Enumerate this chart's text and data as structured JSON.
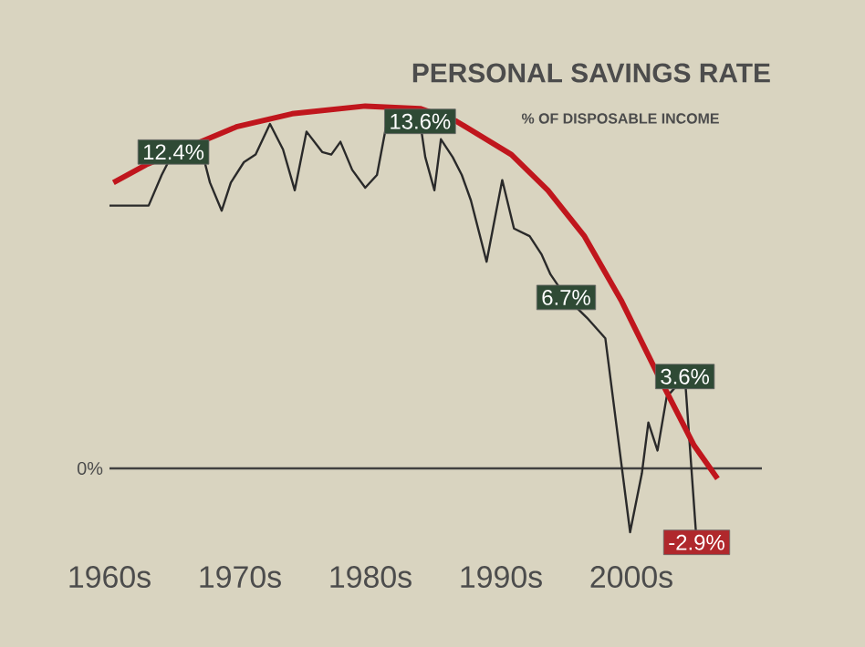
{
  "chart_data": {
    "type": "line",
    "title": "PERSONAL SAVINGS RATE",
    "subtitle": "% OF DISPOSABLE INCOME",
    "xlim": [
      1960,
      2010
    ],
    "xticks": [
      {
        "value": 1960,
        "label": "1960s"
      },
      {
        "value": 1970,
        "label": "1970s"
      },
      {
        "value": 1980,
        "label": "1980s"
      },
      {
        "value": 1990,
        "label": "1990s"
      },
      {
        "value": 2000,
        "label": "2000s"
      }
    ],
    "ref_lines": [
      {
        "axis": "y",
        "value": 0,
        "label": "0%"
      }
    ],
    "series": [
      {
        "color": "#2a2a2a",
        "x": [
          1960.0,
          1963.0,
          1964.0,
          1964.9,
          1967.0,
          1967.7,
          1968.6,
          1969.3,
          1970.3,
          1971.2,
          1972.3,
          1973.3,
          1974.2,
          1975.1,
          1976.3,
          1977.0,
          1977.7,
          1978.6,
          1979.6,
          1980.5,
          1981.2,
          1983.8,
          1984.2,
          1984.9,
          1985.4,
          1986.3,
          1987.0,
          1987.7,
          1988.9,
          1990.1,
          1991.0,
          1992.2,
          1993.1,
          1993.8,
          1995.0,
          1996.6,
          1998.0,
          1999.9,
          2000.8,
          2001.3,
          2002.0,
          2002.7,
          2004.1,
          2005.0
        ],
        "values": [
          10.3,
          10.3,
          11.5,
          12.4,
          12.6,
          11.2,
          10.1,
          11.2,
          12.0,
          12.3,
          13.5,
          12.5,
          10.9,
          13.2,
          12.4,
          12.3,
          12.8,
          11.7,
          11.0,
          11.5,
          13.4,
          13.6,
          12.2,
          10.9,
          12.9,
          12.2,
          11.5,
          10.5,
          8.1,
          11.3,
          9.4,
          9.1,
          8.4,
          7.6,
          6.7,
          5.9,
          5.1,
          -2.5,
          -0.2,
          1.8,
          0.7,
          2.8,
          3.6,
          -2.9
        ],
        "value_labels": [
          null,
          null,
          null,
          "12.4%",
          null,
          null,
          null,
          null,
          null,
          null,
          null,
          null,
          null,
          null,
          null,
          null,
          null,
          null,
          null,
          null,
          null,
          "13.6%",
          null,
          null,
          null,
          null,
          null,
          null,
          null,
          null,
          null,
          null,
          null,
          null,
          "6.7%",
          null,
          null,
          null,
          null,
          null,
          null,
          null,
          "3.6%",
          "-2.9%"
        ]
      },
      {
        "color": "#c0161d",
        "x": [
          1960.3,
          1962.8,
          1969.8,
          1974.0,
          1979.6,
          1983.8,
          1986.6,
          1990.8,
          1993.6,
          1996.4,
          1999.2,
          2002.0,
          2004.8,
          2006.6
        ],
        "values": [
          11.2,
          11.9,
          13.4,
          13.9,
          14.2,
          14.1,
          13.6,
          12.3,
          10.9,
          9.1,
          6.6,
          3.7,
          0.9,
          -0.4
        ]
      }
    ]
  }
}
